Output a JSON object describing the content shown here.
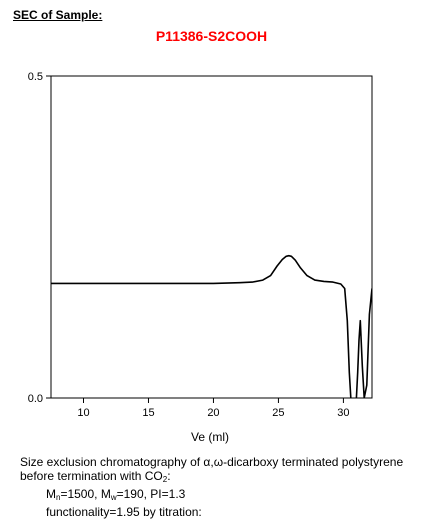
{
  "heading": "SEC of Sample:",
  "sample_title": "P11386-S2COOH",
  "chart_data": {
    "type": "line",
    "title": "P11386-S2COOH",
    "xlabel": "Ve (ml)",
    "ylabel": "",
    "xlim": [
      7.5,
      32.2
    ],
    "ylim": [
      0.0,
      0.5
    ],
    "x_ticks": [
      10,
      15,
      20,
      25,
      30
    ],
    "x_tick_labels": [
      "10",
      "15",
      "20",
      "25",
      "30"
    ],
    "y_ticks": [
      0.0,
      0.5
    ],
    "y_tick_labels": [
      "0.0",
      "0.5"
    ],
    "grid": false,
    "series": [
      {
        "name": "",
        "x": [
          7.5,
          10,
          12,
          14,
          16,
          18,
          20,
          22,
          23,
          23.8,
          24.4,
          24.9,
          25.3,
          25.6,
          25.8,
          26.0,
          26.3,
          26.7,
          27.2,
          27.8,
          28.5,
          29.2,
          29.8,
          30.1,
          30.3,
          30.45,
          30.6,
          30.75,
          30.9,
          31.0,
          31.1,
          31.2,
          31.3,
          31.45,
          31.6,
          31.8,
          32.0,
          32.2
        ],
        "y": [
          0.178,
          0.178,
          0.178,
          0.178,
          0.178,
          0.178,
          0.178,
          0.179,
          0.18,
          0.183,
          0.19,
          0.205,
          0.215,
          0.22,
          0.221,
          0.22,
          0.214,
          0.202,
          0.19,
          0.183,
          0.181,
          0.18,
          0.177,
          0.17,
          0.12,
          0.04,
          -0.01,
          -0.01,
          -0.01,
          0.0,
          0.04,
          0.09,
          0.12,
          0.05,
          0.0,
          0.02,
          0.13,
          0.17
        ]
      }
    ]
  },
  "caption": {
    "line1": "Size exclusion chromatography of α,ω-dicarboxy terminated polystyrene",
    "line2_pre": "before termination with CO",
    "line2_sub": "2",
    "line2_post": ":",
    "mn_label": "M",
    "mn_sub": "n",
    "mn_value": "=1500, M",
    "mw_sub": "w",
    "mw_value": "=190, PI=1.3",
    "functionality": "functionality=1.95 by titration:"
  }
}
